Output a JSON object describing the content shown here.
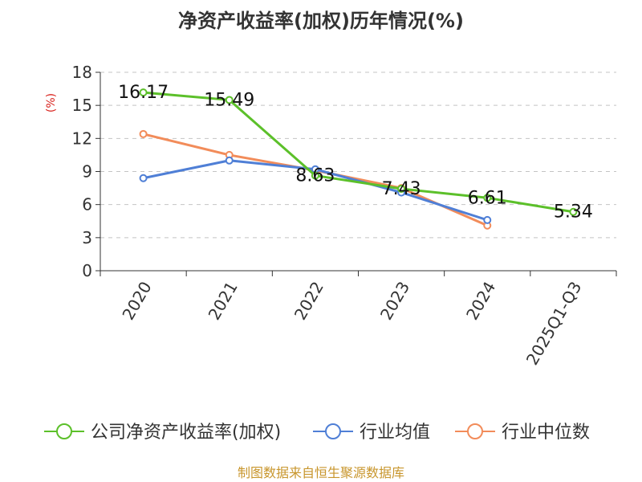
{
  "chart_data": {
    "type": "line",
    "title": "净资产收益率(加权)历年情况(%)",
    "ylabel": "(%)",
    "xlabel": "",
    "categories": [
      "2020",
      "2021",
      "2022",
      "2023",
      "2024",
      "2025Q1-Q3"
    ],
    "ylim": [
      0,
      18
    ],
    "yticks": [
      0,
      3,
      6,
      9,
      12,
      15,
      18
    ],
    "grid": true,
    "legend_position": "bottom",
    "series": [
      {
        "name": "公司净资产收益率(加权)",
        "color": "#5cc02a",
        "values": [
          16.17,
          15.49,
          8.63,
          7.43,
          6.61,
          5.34
        ],
        "labels": [
          "16.17",
          "15.49",
          "8.63",
          "7.43",
          "6.61",
          "5.34"
        ]
      },
      {
        "name": "行业均值",
        "color": "#4f7fd6",
        "values": [
          8.4,
          10.0,
          9.2,
          7.1,
          4.6,
          null
        ]
      },
      {
        "name": "行业中位数",
        "color": "#f28c5a",
        "values": [
          12.4,
          10.5,
          9.1,
          7.5,
          4.1,
          null
        ]
      }
    ],
    "source": "制图数据来自恒生聚源数据库"
  }
}
